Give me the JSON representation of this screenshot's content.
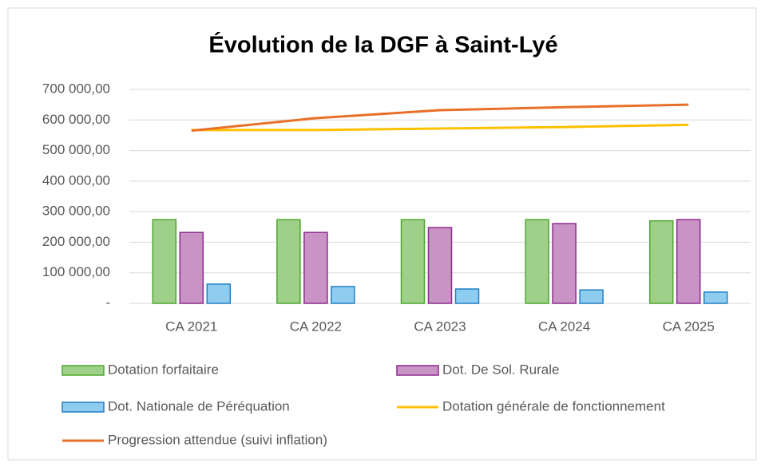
{
  "chart_data": {
    "type": "bar",
    "title": "Évolution  de la DGF à Saint-Lyé",
    "categories": [
      "CA 2021",
      "CA 2022",
      "CA 2023",
      "CA 2024",
      "CA 2025"
    ],
    "series": [
      {
        "name": "Dotation forfaitaire",
        "type": "bar",
        "color": "#9fd08a",
        "values": [
          274000,
          274000,
          274000,
          274000,
          270000
        ]
      },
      {
        "name": "Dot. De Sol. Rurale",
        "type": "bar",
        "color": "#c993c6",
        "values": [
          232000,
          232000,
          248000,
          261000,
          274000
        ]
      },
      {
        "name": "Dot. Nationale de Péréquation",
        "type": "bar",
        "color": "#8fcdf0",
        "values": [
          63000,
          55000,
          47000,
          44000,
          37000
        ]
      },
      {
        "name": "Dotation générale de fonctionnement",
        "type": "line",
        "color": "#ffc000",
        "values": [
          567000,
          567000,
          572000,
          577000,
          584000
        ]
      },
      {
        "name": "Progression attendue (suivi inflation)",
        "type": "line",
        "color": "#e8702a",
        "values": [
          565000,
          606000,
          632000,
          642000,
          650000
        ]
      }
    ],
    "ylim": [
      0,
      700000
    ],
    "yticks": [
      {
        "value": 0,
        "label": "-"
      },
      {
        "value": 100000,
        "label": "100 000,00"
      },
      {
        "value": 200000,
        "label": "200 000,00"
      },
      {
        "value": 300000,
        "label": "300 000,00"
      },
      {
        "value": 400000,
        "label": "400 000,00"
      },
      {
        "value": 500000,
        "label": "500 000,00"
      },
      {
        "value": 600000,
        "label": "600 000,00"
      },
      {
        "value": 700000,
        "label": "700 000,00"
      }
    ],
    "grid": true
  }
}
